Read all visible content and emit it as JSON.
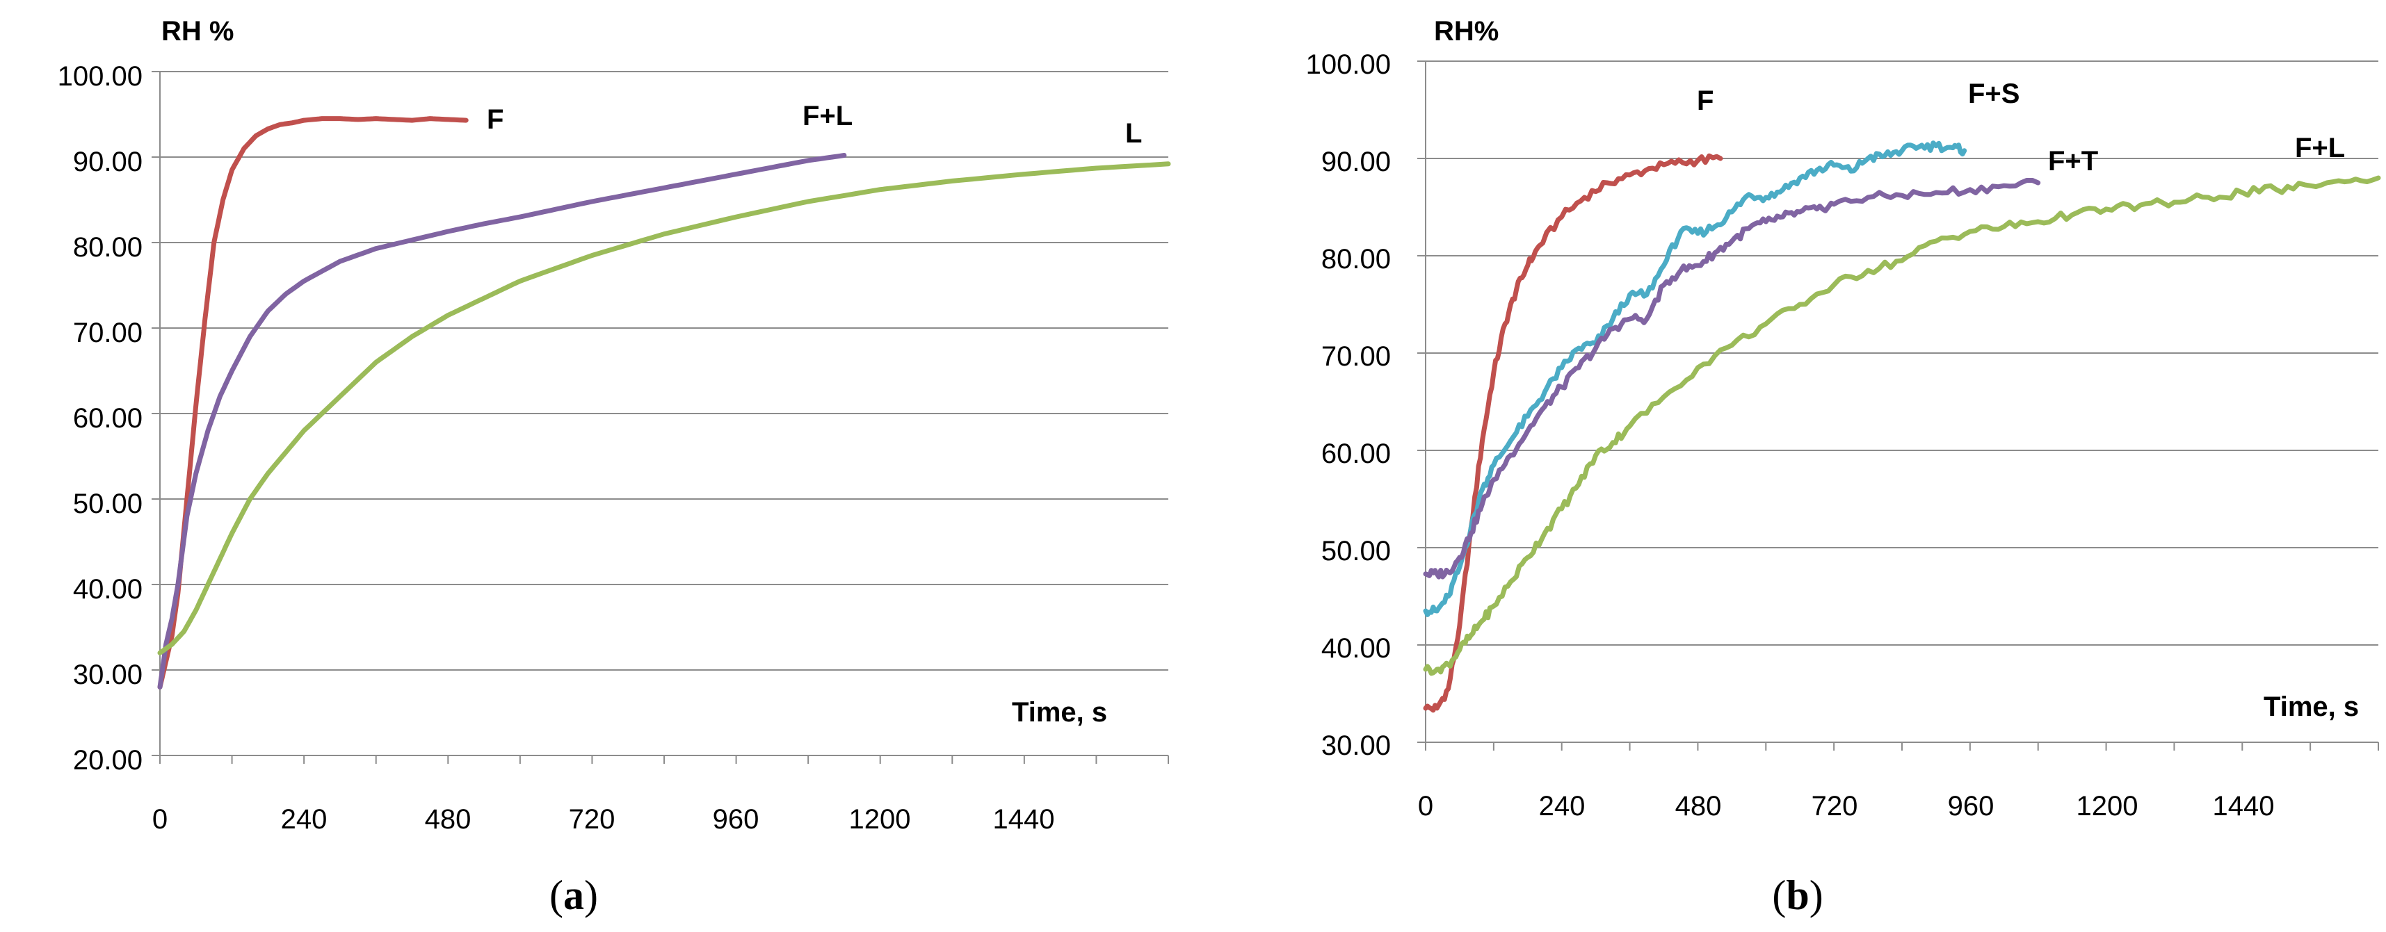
{
  "chart_data": [
    {
      "type": "line",
      "panel_label": "a",
      "ylabel": "RH %",
      "xlabel": "Time, s",
      "ylim": [
        20,
        100
      ],
      "xlim": [
        0,
        1680
      ],
      "y_ticks": [
        "20.00",
        "30.00",
        "40.00",
        "50.00",
        "60.00",
        "70.00",
        "80.00",
        "90.00",
        "100.00"
      ],
      "x_ticks": [
        "0",
        "240",
        "480",
        "720",
        "960",
        "1200",
        "1440"
      ],
      "grid": true,
      "series": [
        {
          "name": "F",
          "color": "#c0504d",
          "x": [
            0,
            10,
            20,
            30,
            45,
            60,
            75,
            90,
            105,
            120,
            140,
            160,
            180,
            200,
            220,
            240,
            270,
            300,
            330,
            360,
            390,
            420,
            450,
            480,
            510
          ],
          "values": [
            28,
            31,
            34,
            39,
            50,
            61,
            71,
            80,
            85,
            88.5,
            91,
            92.5,
            93.3,
            93.8,
            94.0,
            94.3,
            94.5,
            94.5,
            94.4,
            94.5,
            94.4,
            94.3,
            94.5,
            94.4,
            94.3
          ]
        },
        {
          "name": "F+L",
          "color": "#8064a2",
          "x": [
            0,
            10,
            20,
            30,
            45,
            60,
            80,
            100,
            120,
            150,
            180,
            210,
            240,
            300,
            360,
            420,
            480,
            540,
            600,
            660,
            720,
            780,
            840,
            900,
            960,
            1020,
            1080,
            1140
          ],
          "values": [
            28,
            33,
            36,
            40,
            48,
            53,
            58,
            62,
            65,
            69,
            72,
            74,
            75.5,
            77.8,
            79.3,
            80.3,
            81.3,
            82.2,
            83.0,
            83.9,
            84.8,
            85.6,
            86.4,
            87.2,
            88.0,
            88.8,
            89.6,
            90.2
          ]
        },
        {
          "name": "L",
          "color": "#9bbb59",
          "x": [
            0,
            20,
            40,
            60,
            80,
            100,
            120,
            150,
            180,
            210,
            240,
            300,
            360,
            420,
            480,
            540,
            600,
            720,
            840,
            960,
            1080,
            1200,
            1320,
            1440,
            1560,
            1680
          ],
          "values": [
            32,
            33,
            34.5,
            37,
            40,
            43,
            46,
            50,
            53,
            55.5,
            58,
            62,
            66,
            69,
            71.5,
            73.5,
            75.5,
            78.5,
            81,
            83,
            84.8,
            86.2,
            87.2,
            88,
            88.7,
            89.2
          ]
        }
      ],
      "series_labels": [
        "F",
        "F+L",
        "L"
      ]
    },
    {
      "type": "line",
      "panel_label": "b",
      "ylabel": "RH%",
      "xlabel": "Time, s",
      "ylim": [
        30,
        100
      ],
      "xlim": [
        0,
        1680
      ],
      "y_ticks": [
        "30.00",
        "40.00",
        "50.00",
        "60.00",
        "70.00",
        "80.00",
        "90.00",
        "100.00"
      ],
      "x_ticks": [
        "0",
        "240",
        "480",
        "720",
        "960",
        "1200",
        "1440"
      ],
      "grid": true,
      "series": [
        {
          "name": "F",
          "color": "#c0504d",
          "x": [
            0,
            20,
            40,
            60,
            80,
            100,
            120,
            140,
            160,
            180,
            200,
            240,
            280,
            320,
            360,
            400,
            440,
            480,
            520
          ],
          "values": [
            33.5,
            33.5,
            35.5,
            42,
            52,
            61,
            68,
            73,
            76.5,
            79,
            81,
            84,
            86,
            87.5,
            88.3,
            89,
            89.5,
            89.8,
            90.0
          ]
        },
        {
          "name": "F+S",
          "color": "#4bacc6",
          "x": [
            0,
            20,
            40,
            60,
            80,
            100,
            120,
            150,
            180,
            210,
            240,
            270,
            300,
            330,
            360,
            390,
            420,
            450,
            480,
            510,
            540,
            570,
            600,
            630,
            660,
            690,
            720,
            750,
            780,
            810,
            840,
            870,
            900,
            930,
            950
          ],
          "values": [
            43.5,
            43.5,
            45,
            48,
            52,
            56,
            58.5,
            61,
            63.5,
            66,
            68.5,
            70.5,
            71,
            73.5,
            76,
            76,
            79,
            82.5,
            82.3,
            83,
            84.5,
            86.3,
            86,
            86.8,
            88,
            88.8,
            89.3,
            88.7,
            90,
            90.3,
            90.8,
            91.2,
            91.3,
            91.1,
            90.8
          ]
        },
        {
          "name": "F+T",
          "color": "#8064a2",
          "x": [
            0,
            20,
            40,
            60,
            80,
            100,
            120,
            150,
            180,
            210,
            240,
            270,
            300,
            330,
            360,
            390,
            420,
            450,
            480,
            510,
            540,
            570,
            600,
            630,
            660,
            690,
            720,
            780,
            840,
            900,
            960,
            1020,
            1080
          ],
          "values": [
            47.3,
            47.3,
            47.5,
            49,
            51.5,
            54.5,
            57,
            59.5,
            62,
            64.5,
            66.5,
            68.5,
            70.5,
            72.5,
            73.5,
            73.5,
            77,
            78.5,
            79,
            80.3,
            81.5,
            82.8,
            83.5,
            84,
            84.5,
            84.8,
            85.3,
            86,
            86.2,
            86.5,
            86.8,
            87.2,
            87.5
          ]
        },
        {
          "name": "F+L",
          "color": "#9bbb59",
          "x": [
            0,
            20,
            40,
            60,
            80,
            100,
            120,
            150,
            180,
            210,
            240,
            270,
            300,
            330,
            360,
            420,
            480,
            540,
            600,
            660,
            720,
            780,
            840,
            900,
            960,
            1020,
            1080,
            1140,
            1200,
            1260,
            1320,
            1380,
            1440,
            1500,
            1560,
            1620,
            1680
          ],
          "values": [
            37.5,
            37.5,
            38,
            39.5,
            41,
            42.5,
            44,
            46.5,
            49,
            51.5,
            54,
            56.5,
            59.5,
            60.8,
            62.5,
            65.5,
            68.5,
            70.8,
            73,
            75,
            77,
            78.5,
            79.5,
            81.5,
            82.5,
            83,
            83.5,
            84.2,
            84.8,
            85.2,
            85.5,
            86,
            86.5,
            86.8,
            87.2,
            87.6,
            88
          ]
        }
      ],
      "series_labels": [
        "F",
        "F+S",
        "F+T",
        "F+L"
      ]
    }
  ]
}
